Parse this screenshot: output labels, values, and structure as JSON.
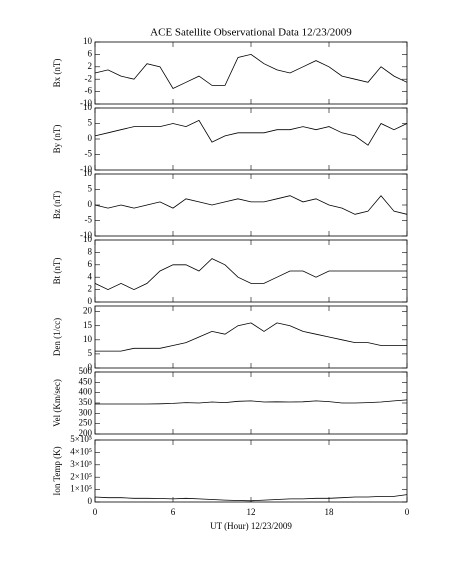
{
  "chart_data": [
    {
      "type": "line",
      "title": "ACE Satellite Observational Data   12/23/2009",
      "ylabel": "Bx (nT)",
      "color": "#000000",
      "x": [
        0,
        1,
        2,
        3,
        4,
        5,
        6,
        7,
        8,
        9,
        10,
        11,
        12,
        13,
        14,
        15,
        16,
        17,
        18,
        19,
        20,
        21,
        22,
        23,
        24
      ],
      "values": [
        0,
        1,
        -1,
        -2,
        3,
        2,
        -5,
        -3,
        -1,
        -4,
        -4,
        5,
        6,
        3,
        1,
        0,
        2,
        4,
        2,
        -1,
        -2,
        -3,
        2,
        -1,
        -3
      ],
      "ylim": [
        -10,
        10
      ],
      "yticks": [
        -10,
        -6,
        -2,
        2,
        6,
        10
      ]
    },
    {
      "type": "line",
      "ylabel": "By (nT)",
      "color": "#000000",
      "x": [
        0,
        1,
        2,
        3,
        4,
        5,
        6,
        7,
        8,
        9,
        10,
        11,
        12,
        13,
        14,
        15,
        16,
        17,
        18,
        19,
        20,
        21,
        22,
        23,
        24
      ],
      "values": [
        1,
        2,
        3,
        4,
        4,
        4,
        5,
        4,
        6,
        -1,
        1,
        2,
        2,
        2,
        3,
        3,
        4,
        3,
        4,
        2,
        1,
        -2,
        5,
        3,
        5
      ],
      "ylim": [
        -10,
        10
      ],
      "yticks": [
        -10,
        -5,
        0,
        5,
        10
      ]
    },
    {
      "type": "line",
      "ylabel": "Bz (nT)",
      "color": "#000000",
      "x": [
        0,
        1,
        2,
        3,
        4,
        5,
        6,
        7,
        8,
        9,
        10,
        11,
        12,
        13,
        14,
        15,
        16,
        17,
        18,
        19,
        20,
        21,
        22,
        23,
        24
      ],
      "values": [
        0,
        -1,
        0,
        -1,
        0,
        1,
        -1,
        2,
        1,
        0,
        1,
        2,
        1,
        1,
        2,
        3,
        1,
        2,
        0,
        -1,
        -3,
        -2,
        3,
        -2,
        -3
      ],
      "ylim": [
        -10,
        10
      ],
      "yticks": [
        -10,
        -5,
        0,
        5,
        10
      ]
    },
    {
      "type": "line",
      "ylabel": "Bt (nT)",
      "color": "#000000",
      "x": [
        0,
        1,
        2,
        3,
        4,
        5,
        6,
        7,
        8,
        9,
        10,
        11,
        12,
        13,
        14,
        15,
        16,
        17,
        18,
        19,
        20,
        21,
        22,
        23,
        24
      ],
      "values": [
        3,
        2,
        3,
        2,
        3,
        5,
        6,
        6,
        5,
        7,
        6,
        4,
        3,
        3,
        4,
        5,
        5,
        4,
        5,
        5,
        5,
        5,
        5,
        5,
        5
      ],
      "ylim": [
        0,
        10
      ],
      "yticks": [
        0,
        2,
        4,
        6,
        8,
        10
      ]
    },
    {
      "type": "line",
      "ylabel": "Den (1/cc)",
      "color": "#000000",
      "x": [
        0,
        1,
        2,
        3,
        4,
        5,
        6,
        7,
        8,
        9,
        10,
        11,
        12,
        13,
        14,
        15,
        16,
        17,
        18,
        19,
        20,
        21,
        22,
        23,
        24
      ],
      "values": [
        6,
        6,
        6,
        7,
        7,
        7,
        8,
        9,
        11,
        13,
        12,
        15,
        16,
        13,
        16,
        15,
        13,
        12,
        11,
        10,
        9,
        9,
        8,
        8,
        8
      ],
      "ylim": [
        0,
        22
      ],
      "yticks": [
        0,
        5,
        10,
        15,
        20
      ]
    },
    {
      "type": "line",
      "ylabel": "Vel (Km/sec)",
      "color": "#000000",
      "x": [
        0,
        1,
        2,
        3,
        4,
        5,
        6,
        7,
        8,
        9,
        10,
        11,
        12,
        13,
        14,
        15,
        16,
        17,
        18,
        19,
        20,
        21,
        22,
        23,
        24
      ],
      "values": [
        345,
        345,
        345,
        345,
        345,
        346,
        348,
        352,
        350,
        355,
        352,
        358,
        360,
        355,
        356,
        355,
        356,
        360,
        357,
        350,
        350,
        352,
        355,
        360,
        365
      ],
      "ylim": [
        200,
        500
      ],
      "yticks": [
        200,
        250,
        300,
        350,
        400,
        450,
        500
      ]
    },
    {
      "type": "line",
      "ylabel": "Ion Temp (K)",
      "xlabel": "UT (Hour)  12/23/2009",
      "color": "#000000",
      "x": [
        0,
        1,
        2,
        3,
        4,
        5,
        6,
        7,
        8,
        9,
        10,
        11,
        12,
        13,
        14,
        15,
        16,
        17,
        18,
        19,
        20,
        21,
        22,
        23,
        24
      ],
      "values": [
        40000,
        35000,
        35000,
        30000,
        30000,
        28000,
        25000,
        30000,
        25000,
        20000,
        15000,
        12000,
        10000,
        15000,
        20000,
        25000,
        25000,
        30000,
        30000,
        35000,
        40000,
        40000,
        45000,
        45000,
        60000
      ],
      "ylim": [
        0,
        500000
      ],
      "yticks": [
        0,
        {
          "value": 100000,
          "label": "1×10⁵"
        },
        {
          "value": 200000,
          "label": "2×10⁵"
        },
        {
          "value": 300000,
          "label": "3×10⁵"
        },
        {
          "value": 400000,
          "label": "4×10⁵"
        },
        {
          "value": 500000,
          "label": "5×10⁵"
        }
      ],
      "xlim": [
        0,
        24
      ],
      "xticks": [
        0,
        6,
        12,
        18,
        {
          "value": 24,
          "label": "0"
        }
      ]
    }
  ]
}
